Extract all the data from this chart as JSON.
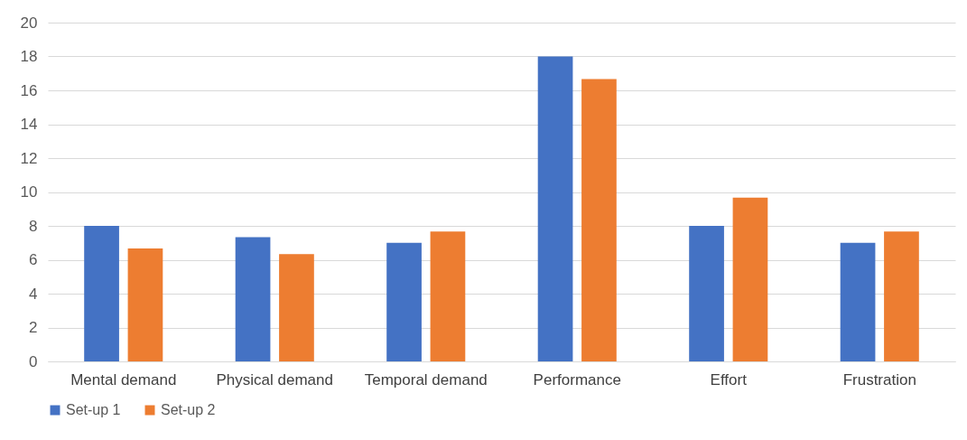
{
  "chart_data": {
    "type": "bar",
    "categories": [
      "Mental demand",
      "Physical demand",
      "Temporal demand",
      "Performance",
      "Effort",
      "Frustration"
    ],
    "series": [
      {
        "name": "Set-up 1",
        "color": "#4472c4",
        "values": [
          8,
          7.33,
          7,
          18,
          8,
          7
        ]
      },
      {
        "name": "Set-up 2",
        "color": "#ed7d31",
        "values": [
          6.67,
          6.33,
          7.67,
          16.67,
          9.67,
          7.67
        ]
      }
    ],
    "ylim": [
      0,
      20
    ],
    "yticks": [
      0,
      2,
      4,
      6,
      8,
      10,
      12,
      14,
      16,
      18,
      20
    ],
    "grid": "y",
    "legend": "bottom"
  }
}
